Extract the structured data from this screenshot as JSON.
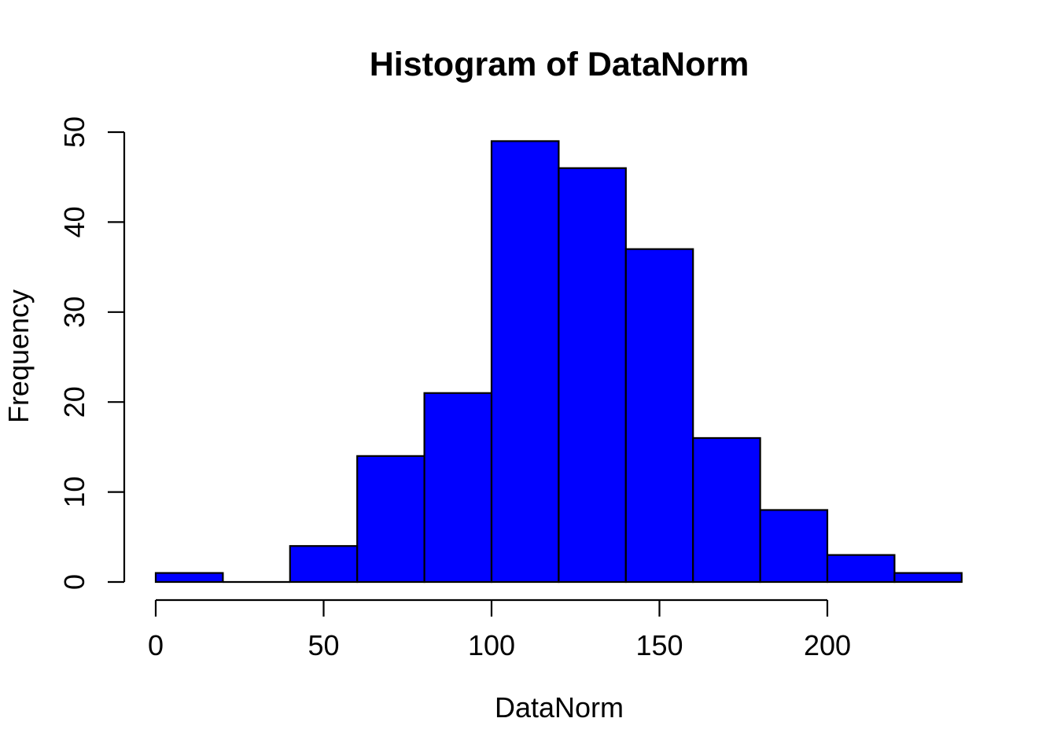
{
  "chart_data": {
    "type": "bar",
    "subtype": "histogram",
    "title": "Histogram of DataNorm",
    "xlabel": "DataNorm",
    "ylabel": "Frequency",
    "bin_breaks": [
      0,
      20,
      40,
      60,
      80,
      100,
      120,
      140,
      160,
      180,
      200,
      220,
      240
    ],
    "bin_counts": [
      1,
      0,
      4,
      14,
      21,
      49,
      46,
      37,
      16,
      8,
      3,
      1
    ],
    "x_tick_values": [
      0,
      50,
      100,
      150,
      200
    ],
    "x_tick_labels": [
      "0",
      "50",
      "100",
      "150",
      "200"
    ],
    "y_tick_values": [
      0,
      10,
      20,
      30,
      40,
      50
    ],
    "y_tick_labels": [
      "0",
      "10",
      "20",
      "30",
      "40",
      "50"
    ],
    "xlim": [
      0,
      240
    ],
    "ylim": [
      0,
      50
    ],
    "grid": "off",
    "legend": "none",
    "colors": {
      "bar_fill": "#0000FF",
      "bar_border": "#000000",
      "axis": "#000000",
      "text": "#000000",
      "background": "#FFFFFF"
    }
  }
}
